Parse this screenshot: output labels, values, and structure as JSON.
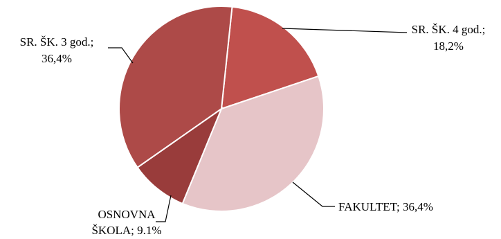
{
  "chart_data": {
    "type": "pie",
    "title": "",
    "start_angle_deg": 6,
    "direction": "clockwise",
    "slices": [
      {
        "name": "SR. ŠK. 4 god.",
        "value": 18.2,
        "label_lines": [
          "SR. ŠK. 4 god.;",
          "18,2%"
        ],
        "color": "#c0504d"
      },
      {
        "name": "FAKULTET",
        "value": 36.4,
        "label_lines": [
          "FAKULTET; 36,4%"
        ],
        "color": "#e6c5c8"
      },
      {
        "name": "OSNOVNA ŠKOLA",
        "value": 9.1,
        "label_lines": [
          "OSNOVNA",
          "ŠKOLA; 9.1%"
        ],
        "color": "#993c3b"
      },
      {
        "name": "SR. ŠK. 3 god.",
        "value": 36.4,
        "label_lines": [
          "SR. ŠK. 3 god.;",
          "36,4%"
        ],
        "color": "#ad4a48"
      }
    ]
  }
}
